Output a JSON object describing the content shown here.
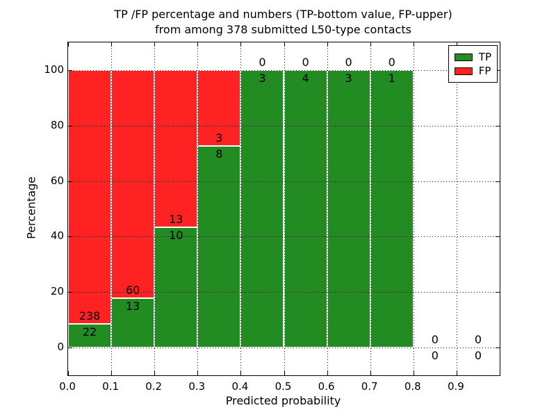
{
  "title": {
    "line1": "TP /FP percentage and numbers (TP-bottom value, FP-upper)",
    "line2": "from among 378 submitted L50-type contacts"
  },
  "axes": {
    "xlabel": "Predicted probability",
    "ylabel": "Percentage",
    "x_tick_values": [
      0.0,
      0.1,
      0.2,
      0.3,
      0.4,
      0.5,
      0.6,
      0.7,
      0.8,
      0.9
    ],
    "x_tick_labels": [
      "0.0",
      "0.1",
      "0.2",
      "0.3",
      "0.4",
      "0.5",
      "0.6",
      "0.7",
      "0.8",
      "0.9"
    ],
    "y_tick_values": [
      0,
      20,
      40,
      60,
      80,
      100
    ],
    "y_tick_labels": [
      "0",
      "20",
      "40",
      "60",
      "80",
      "100"
    ]
  },
  "legend": {
    "items": [
      {
        "label": "TP",
        "color": "#228b22"
      },
      {
        "label": "FP",
        "color": "#ff2222"
      }
    ]
  },
  "colors": {
    "tp": "#228b22",
    "fp": "#ff2222",
    "grid": "#000000",
    "background": "#ffffff"
  },
  "chart_data": {
    "type": "bar",
    "stacked": true,
    "title": "TP /FP percentage and numbers (TP-bottom value, FP-upper) from among 378 submitted L50-type contacts",
    "xlabel": "Predicted probability",
    "ylabel": "Percentage",
    "total_submitted_contacts": 378,
    "bins": [
      [
        0.0,
        0.1
      ],
      [
        0.1,
        0.2
      ],
      [
        0.2,
        0.3
      ],
      [
        0.3,
        0.4
      ],
      [
        0.4,
        0.5
      ],
      [
        0.5,
        0.6
      ],
      [
        0.6,
        0.7
      ],
      [
        0.7,
        0.8
      ],
      [
        0.8,
        0.9
      ],
      [
        0.9,
        1.0
      ]
    ],
    "categories": [
      "0.0-0.1",
      "0.1-0.2",
      "0.2-0.3",
      "0.3-0.4",
      "0.4-0.5",
      "0.5-0.6",
      "0.6-0.7",
      "0.7-0.8",
      "0.8-0.9",
      "0.9-1.0"
    ],
    "series": [
      {
        "name": "TP",
        "color": "#228b22",
        "counts": [
          22,
          13,
          10,
          8,
          3,
          4,
          3,
          1,
          0,
          0
        ]
      },
      {
        "name": "FP",
        "color": "#ff2222",
        "counts": [
          238,
          60,
          13,
          3,
          0,
          0,
          0,
          0,
          0,
          0
        ]
      }
    ],
    "tp_percent_stacked": [
      8.5,
      17.8,
      43.5,
      72.7,
      100,
      100,
      100,
      100,
      0,
      0
    ],
    "xlim": [
      0.0,
      1.0
    ],
    "ylim": [
      -10,
      110
    ],
    "x_grid_values": [
      0.1,
      0.2,
      0.3,
      0.4,
      0.5,
      0.6,
      0.7,
      0.8,
      0.9
    ],
    "y_grid_values": [
      0,
      20,
      40,
      60,
      80,
      100
    ],
    "grid": "dotted",
    "legend_position": "upper right"
  }
}
